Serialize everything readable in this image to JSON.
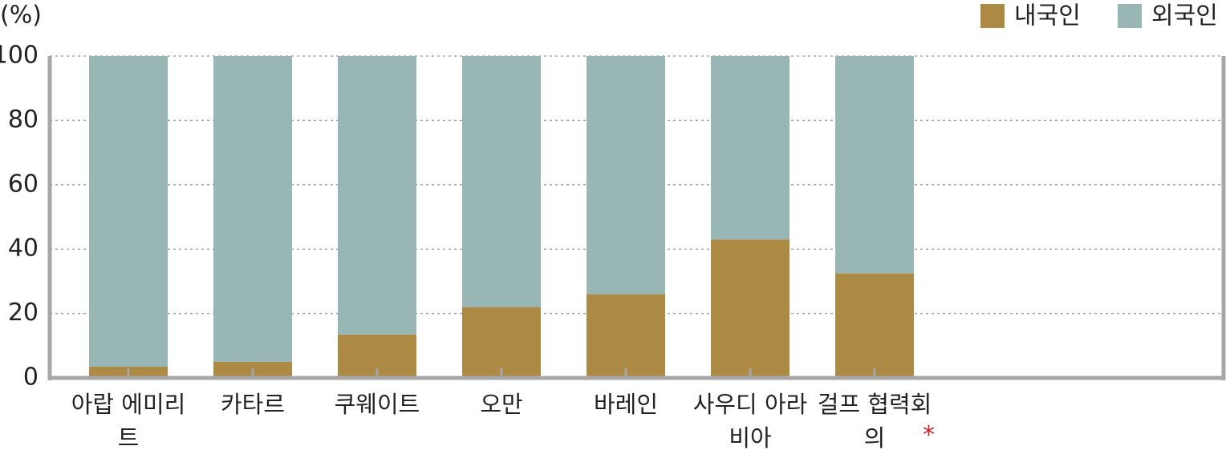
{
  "chart_data": {
    "type": "stacked_bar",
    "y_unit_label": "(%)",
    "categories": [
      "아랍 에미리트",
      "카타르",
      "쿠웨이트",
      "오만",
      "바레인",
      "사우디 아라비아",
      "걸프 협력회의"
    ],
    "footnote_marker": "*",
    "series": [
      {
        "name": "내국인",
        "color": "#ad8a43",
        "values": [
          3.5,
          5,
          13.5,
          22,
          26,
          43,
          32.5
        ]
      },
      {
        "name": "외국인",
        "color": "#98b6b3",
        "values": [
          96.5,
          95,
          86.5,
          78,
          74,
          57,
          67.5
        ]
      }
    ],
    "ylim": [
      0,
      100
    ],
    "yticks": [
      0,
      20,
      40,
      60,
      80,
      100
    ],
    "grid": true,
    "legend": "top-right"
  }
}
